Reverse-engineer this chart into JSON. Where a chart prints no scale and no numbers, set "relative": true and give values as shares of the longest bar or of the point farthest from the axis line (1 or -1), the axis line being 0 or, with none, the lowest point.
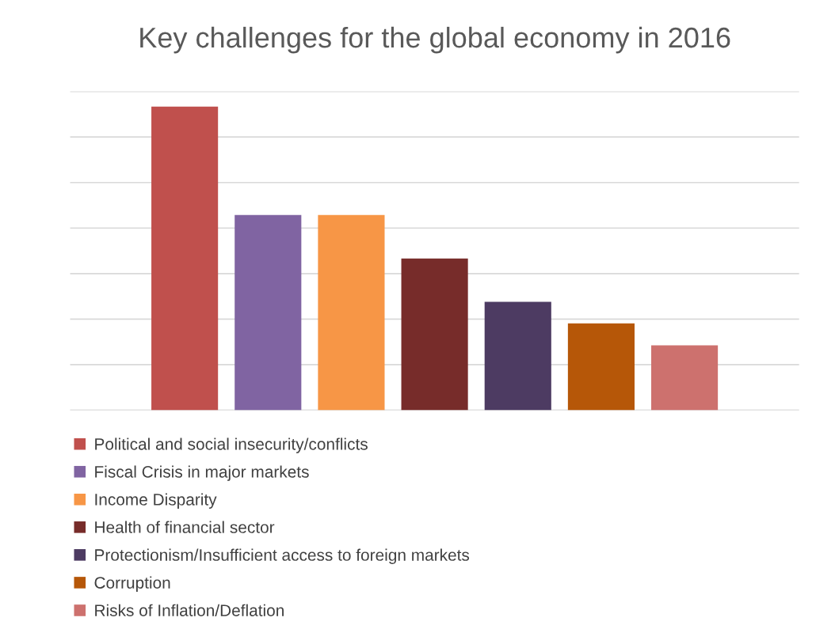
{
  "chart_data": {
    "type": "bar",
    "title": "Key challenges for the global economy in 2016",
    "categories": [
      null
    ],
    "series": [
      {
        "name": "Political and social insecurity/conflicts",
        "color": "#c0504d",
        "values": [
          1
        ]
      },
      {
        "name": "Fiscal Crisis in major markets",
        "color": "#8064a2",
        "values": [
          0.643
        ]
      },
      {
        "name": "Income Disparity",
        "color": "#f79646",
        "values": [
          0.643
        ]
      },
      {
        "name": "Health of financial sector",
        "color": "#772c2a",
        "values": [
          0.5
        ]
      },
      {
        "name": "Protectionism/Insufficient access to foreign markets",
        "color": "#4d3b62",
        "values": [
          0.357
        ]
      },
      {
        "name": "Corruption",
        "color": "#b65708",
        "values": [
          0.286
        ]
      },
      {
        "name": "Risks of Inflation/Deflation",
        "color": "#cd716e",
        "values": [
          0.214
        ]
      }
    ],
    "relative": true,
    "grid": "y",
    "legend": "bottom"
  }
}
